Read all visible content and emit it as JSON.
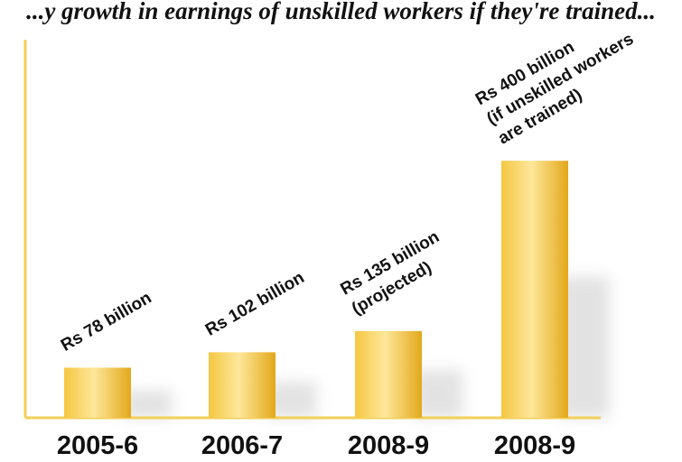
{
  "caption": "...y growth in earnings of unskilled workers if they're trained...",
  "chart_data": {
    "type": "bar",
    "title": "",
    "xlabel": "",
    "ylabel": "",
    "categories": [
      "2005-6",
      "2006-7",
      "2008-9",
      "2008-9"
    ],
    "values": [
      78,
      102,
      135,
      400
    ],
    "unit": "Rs billion",
    "data_labels": [
      [
        "Rs 78 billion"
      ],
      [
        "Rs 102 billion"
      ],
      [
        "Rs 135 billion",
        "(projected)"
      ],
      [
        "Rs  400 billion",
        "(if unskilled workers",
        "are trained)"
      ]
    ],
    "ylim": [
      0,
      580
    ],
    "grid": false,
    "legend": "none",
    "colors": {
      "bar_light": "#fde79a",
      "bar_mid": "#f5c742",
      "bar_dark": "#e3a81a",
      "axis": "#f2cf57",
      "text": "#111111"
    }
  }
}
